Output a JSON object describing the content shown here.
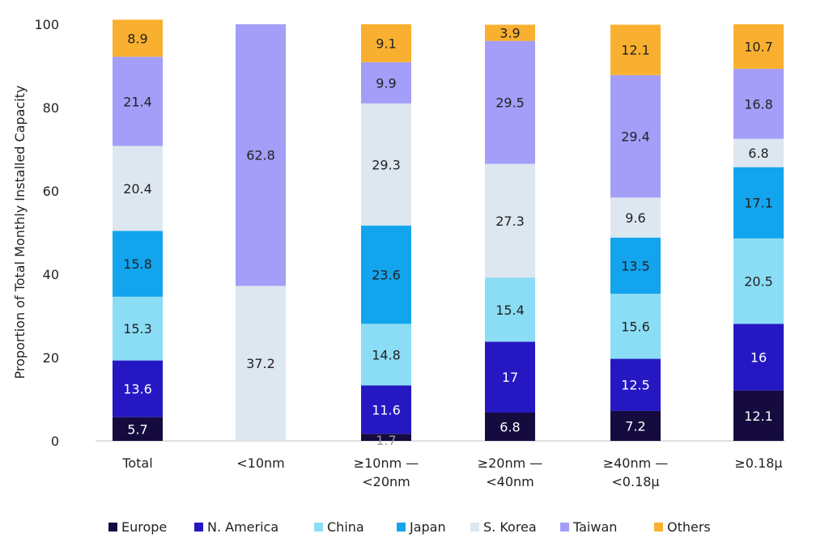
{
  "chart_data": {
    "type": "bar",
    "stacked": true,
    "categories": [
      [
        "Total"
      ],
      [
        "<10nm"
      ],
      [
        "≥10nm —",
        "<20nm"
      ],
      [
        "≥20nm —",
        "<40nm"
      ],
      [
        "≥40nm —",
        "<0.18μ"
      ],
      [
        "≥0.18μ"
      ]
    ],
    "series": [
      {
        "name": "Europe",
        "color": "#150B3E",
        "label_color": "#ffffff",
        "values": [
          5.7,
          0,
          1.7,
          6.8,
          7.2,
          12.1
        ],
        "labels": [
          "5.7",
          "",
          "1.7",
          "6.8",
          "7.2",
          "12.1"
        ]
      },
      {
        "name": "N. America",
        "color": "#2518C3",
        "label_color": "#ffffff",
        "values": [
          13.6,
          0,
          11.6,
          17,
          12.5,
          16
        ],
        "labels": [
          "13.6",
          "",
          "11.6",
          "17",
          "12.5",
          "16"
        ]
      },
      {
        "name": "China",
        "color": "#8BDDF5",
        "label_color": "#222222",
        "values": [
          15.3,
          0,
          14.8,
          15.4,
          15.6,
          20.5
        ],
        "labels": [
          "15.3",
          "",
          "14.8",
          "15.4",
          "15.6",
          "20.5"
        ]
      },
      {
        "name": "Japan",
        "color": "#13A4EE",
        "label_color": "#222222",
        "values": [
          15.8,
          0,
          23.6,
          0,
          13.5,
          17.1
        ],
        "labels": [
          "15.8",
          "",
          "23.6",
          "",
          "13.5",
          "17.1"
        ]
      },
      {
        "name": "S. Korea",
        "color": "#DDE7F0",
        "label_color": "#222222",
        "values": [
          20.4,
          37.2,
          29.3,
          27.3,
          9.6,
          6.8
        ],
        "labels": [
          "20.4",
          "37.2",
          "29.3",
          "27.3",
          "9.6",
          "6.8"
        ]
      },
      {
        "name": "Taiwan",
        "color": "#A49EF8",
        "label_color": "#222222",
        "values": [
          21.4,
          62.8,
          9.9,
          29.5,
          29.4,
          16.8
        ],
        "labels": [
          "21.4",
          "62.8",
          "9.9",
          "29.5",
          "29.4",
          "16.8"
        ]
      },
      {
        "name": "Others",
        "color": "#F9B030",
        "label_color": "#222222",
        "values": [
          8.9,
          0,
          9.1,
          3.9,
          12.1,
          10.7
        ],
        "labels": [
          "8.9",
          "",
          "9.1",
          "3.9",
          "12.1",
          "10.7"
        ]
      }
    ],
    "ylabel": "Proportion of Total Monthly Installed Capacity",
    "xlabel": "",
    "ylim": [
      0,
      100
    ],
    "yticks": [
      0,
      20,
      40,
      60,
      80,
      100
    ],
    "grid": false,
    "legend": "bottom"
  }
}
